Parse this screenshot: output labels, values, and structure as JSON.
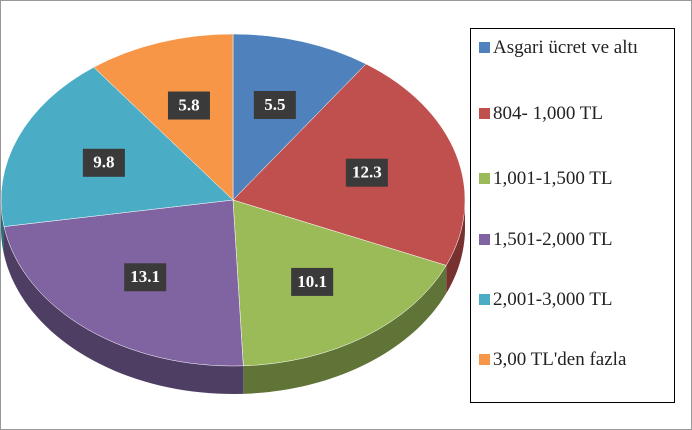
{
  "chart_data": {
    "type": "pie",
    "categories": [
      "Asgari ücret ve altı",
      "804- 1,000 TL",
      "1,001-1,500 TL",
      "1,501-2,000 TL",
      "2,001-3,000 TL",
      "3,00 TL'den fazla"
    ],
    "values": [
      5.5,
      12.3,
      10.1,
      13.1,
      9.8,
      5.8
    ],
    "colors": [
      "#4f81bd",
      "#c0504d",
      "#9bbb59",
      "#8064a2",
      "#4bacc6",
      "#f79646"
    ],
    "legend": "right"
  }
}
